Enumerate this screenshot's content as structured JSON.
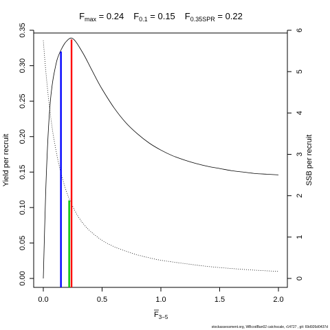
{
  "chart_data": {
    "type": "line",
    "title": {
      "fmax_label": "F",
      "fmax_sub": "max",
      "fmax_value": " = 0.24",
      "f01_label": "F",
      "f01_sub": "0.1",
      "f01_value": " = 0.15",
      "f35_label": "F",
      "f35_sub": "0.35SPR",
      "f35_value": " = 0.22"
    },
    "xlabel_main": "F",
    "xlabel_sub": "3−5",
    "ylabel_left": "Yield per recruit",
    "ylabel_right": "SSB per recruit",
    "xlim": [
      0,
      2
    ],
    "ylim_left": [
      0,
      0.35
    ],
    "ylim_right": [
      0,
      6
    ],
    "x_ticks": [
      "0.0",
      "0.5",
      "1.0",
      "1.5",
      "2.0"
    ],
    "x_tick_values": [
      0,
      0.5,
      1.0,
      1.5,
      2.0
    ],
    "y_left_ticks": [
      "0.00",
      "0.05",
      "0.10",
      "0.15",
      "0.20",
      "0.25",
      "0.30",
      "0.35"
    ],
    "y_left_tick_values": [
      0,
      0.05,
      0.1,
      0.15,
      0.2,
      0.25,
      0.3,
      0.35
    ],
    "y_right_ticks": [
      "0",
      "1",
      "2",
      "3",
      "4",
      "5",
      "6"
    ],
    "y_right_tick_values": [
      0,
      1,
      2,
      3,
      4,
      5,
      6
    ],
    "series": [
      {
        "axis": "left",
        "style": "solid",
        "x": [
          0,
          0.02,
          0.04,
          0.06,
          0.08,
          0.1,
          0.12,
          0.15,
          0.18,
          0.2,
          0.22,
          0.24,
          0.26,
          0.28,
          0.3,
          0.35,
          0.4,
          0.45,
          0.5,
          0.6,
          0.7,
          0.8,
          0.9,
          1.0,
          1.1,
          1.2,
          1.3,
          1.4,
          1.5,
          1.6,
          1.7,
          1.8,
          1.9,
          2.0
        ],
        "y": [
          0.0,
          0.12,
          0.2,
          0.25,
          0.278,
          0.296,
          0.31,
          0.322,
          0.331,
          0.335,
          0.338,
          0.339,
          0.337,
          0.333,
          0.328,
          0.314,
          0.298,
          0.282,
          0.267,
          0.241,
          0.22,
          0.204,
          0.191,
          0.181,
          0.173,
          0.167,
          0.162,
          0.158,
          0.155,
          0.152,
          0.15,
          0.148,
          0.147,
          0.146
        ]
      },
      {
        "axis": "right",
        "style": "dotted",
        "x": [
          0,
          0.02,
          0.05,
          0.08,
          0.1,
          0.12,
          0.15,
          0.18,
          0.2,
          0.22,
          0.25,
          0.3,
          0.35,
          0.4,
          0.5,
          0.6,
          0.7,
          0.8,
          0.9,
          1.0,
          1.2,
          1.4,
          1.6,
          1.8,
          2.0
        ],
        "y": [
          5.75,
          5.05,
          4.2,
          3.55,
          3.22,
          2.92,
          2.55,
          2.25,
          2.08,
          1.93,
          1.74,
          1.48,
          1.29,
          1.14,
          0.92,
          0.77,
          0.66,
          0.57,
          0.5,
          0.44,
          0.36,
          0.29,
          0.24,
          0.2,
          0.17
        ]
      }
    ],
    "reference_lines": [
      {
        "name": "F0.1",
        "x": 0.15,
        "y_top_left": 0.322,
        "color": "#0000ff"
      },
      {
        "name": "F0.35SPR",
        "x": 0.22,
        "y_top_left": 0.112,
        "color": "#00c000"
      },
      {
        "name": "Fmax",
        "x": 0.24,
        "y_top_left": 0.339,
        "color": "#ff0000"
      }
    ]
  },
  "footer": "stockassessment.org, WBcodBan02 catchscale, r14727 , git: 69d926d0437d"
}
